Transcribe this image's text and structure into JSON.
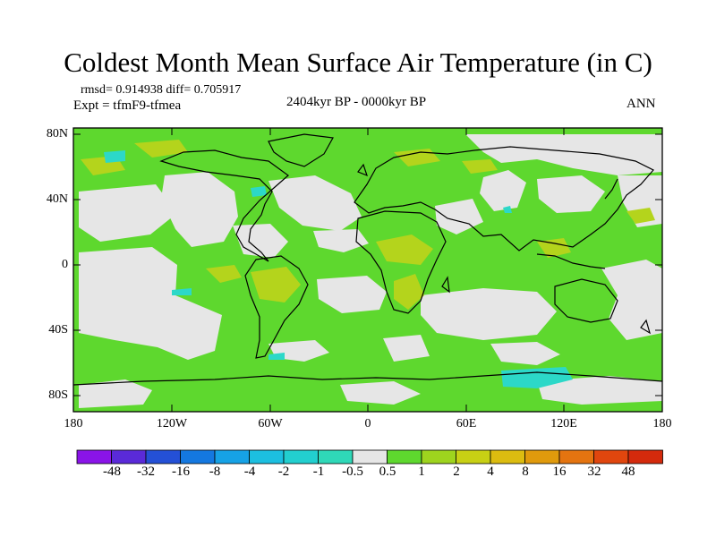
{
  "title": "Coldest Month Mean Surface Air Temperature (in C)",
  "stats": "rmsd= 0.914938  diff= 0.705917",
  "experiment": "Expt = tfmF9-tfmea",
  "period": "2404kyr BP - 0000kyr BP",
  "season": "ANN",
  "map": {
    "lat_labels": [
      "80N",
      "40N",
      "0",
      "40S",
      "80S"
    ],
    "lon_labels": [
      "180",
      "120W",
      "60W",
      "0",
      "60E",
      "120E",
      "180"
    ]
  },
  "colorbar": {
    "labels": [
      "-48",
      "-32",
      "-16",
      "-8",
      "-4",
      "-2",
      "-1",
      "-0.5",
      "0.5",
      "1",
      "2",
      "4",
      "8",
      "16",
      "32",
      "48"
    ],
    "colors": [
      "#8a14e8",
      "#5a2ad8",
      "#2450d6",
      "#1478e0",
      "#16a2e6",
      "#1cbfe0",
      "#22cfcf",
      "#2fd8b8",
      "#e6e6e6",
      "#5ed82e",
      "#9ed41e",
      "#c8d014",
      "#dcbc10",
      "#e09a0c",
      "#e47410",
      "#e0460e",
      "#d42a0c"
    ]
  },
  "legend_colors": {
    "neutral": "#e6e6e6",
    "light_green": "#5ed82e",
    "green": "#7cd428",
    "yellow_green": "#b4d41c",
    "cyan": "#2cd8c8",
    "coastline": "#000000"
  }
}
